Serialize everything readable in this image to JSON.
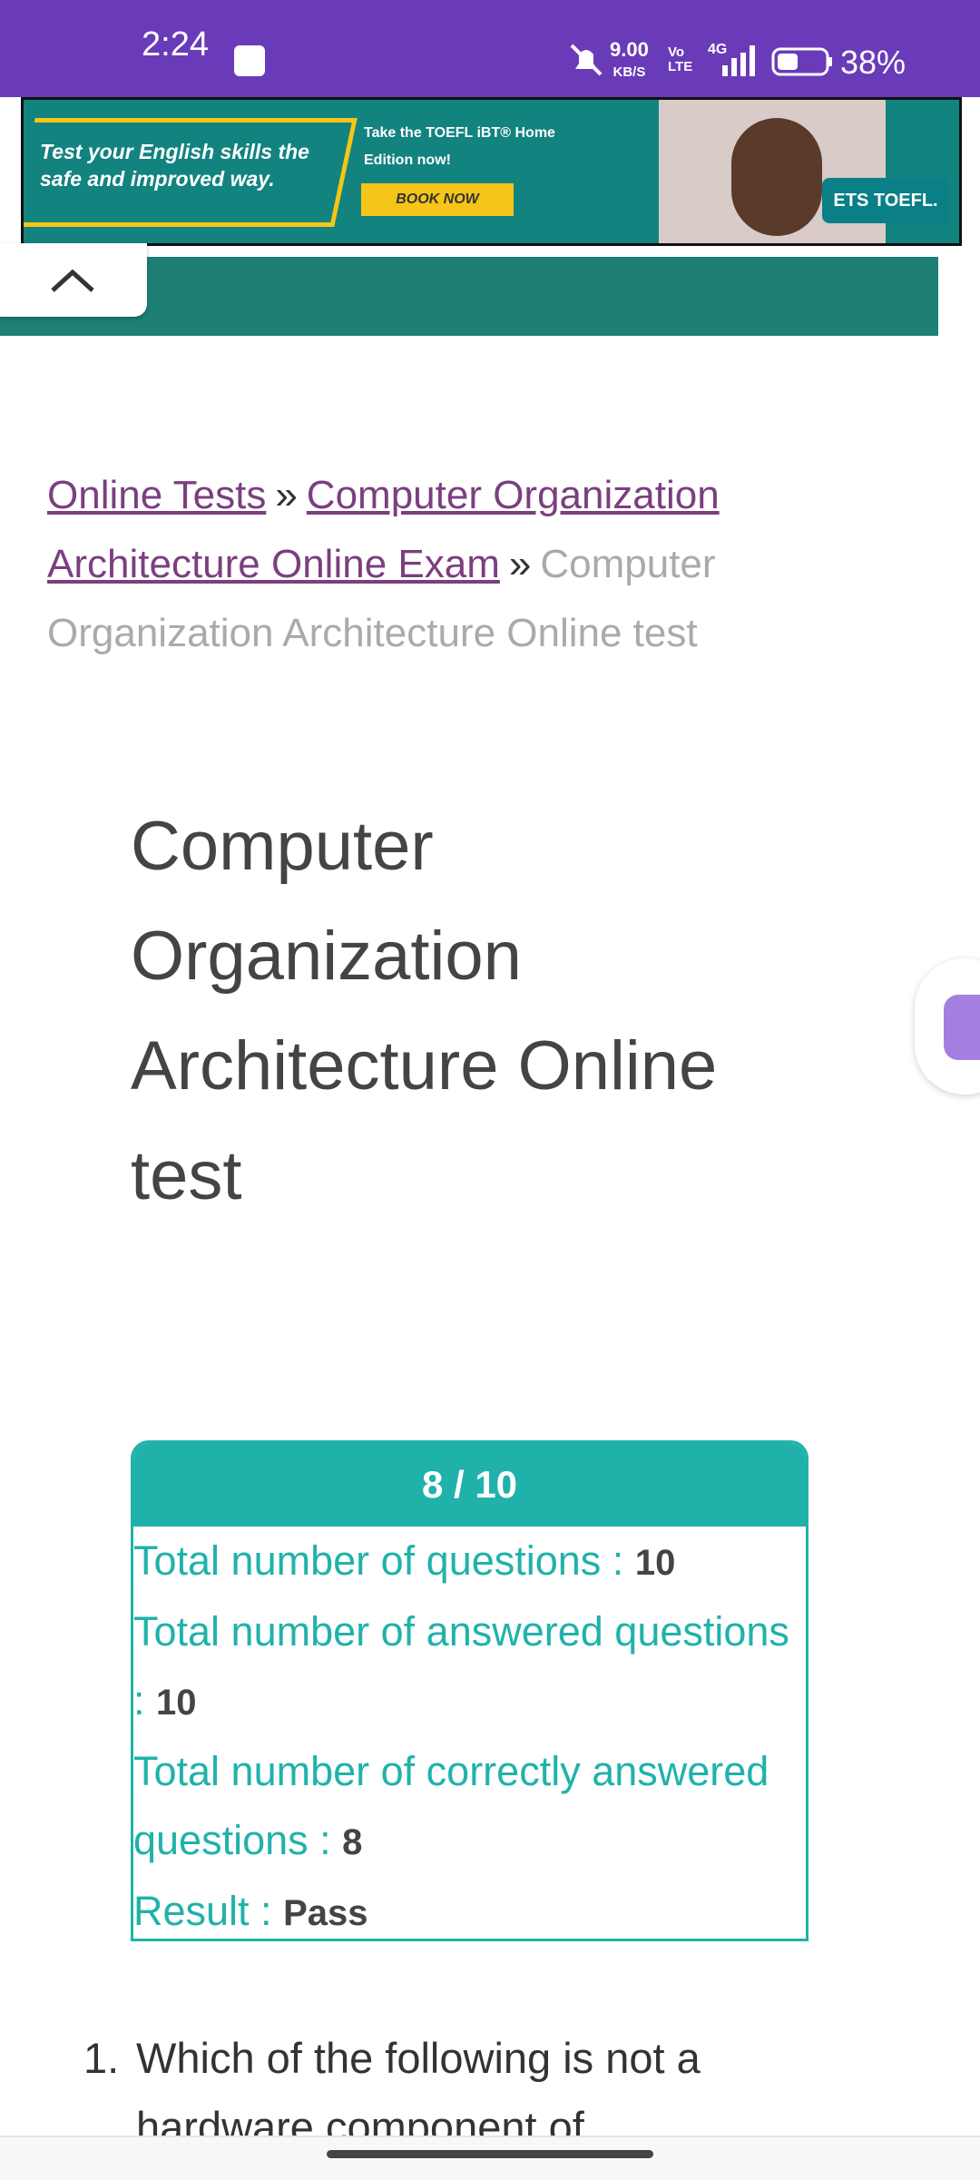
{
  "status_bar": {
    "time": "2:24",
    "net_speed": "9.00",
    "net_unit": "KB/S",
    "volte": "Vo LTE",
    "network": "4G",
    "battery": "38%"
  },
  "ad": {
    "headline": "Test your English skills the safe and improved way.",
    "offer": "Take the TOEFL iBT® Home Edition now!",
    "button": "BOOK NOW",
    "brand": "ETS TOEFL."
  },
  "breadcrumb": {
    "items": [
      "Online Tests",
      "Computer Organization Architecture Online Exam"
    ],
    "separator": "»",
    "current": "Computer Organization Architecture Online test"
  },
  "title": "Computer Organization Architecture Online test",
  "score_box": {
    "score": "8 / 10",
    "rows": [
      {
        "label": "Total number of questions :",
        "value": "10"
      },
      {
        "label": "Total number of answered questions :",
        "value": "10"
      },
      {
        "label": "Total number of correctly answered questions :",
        "value": "8"
      },
      {
        "label": "Result :",
        "value": "Pass"
      }
    ]
  },
  "question": {
    "number": "1.",
    "text": "Which of the following is not a hardware component of"
  }
}
